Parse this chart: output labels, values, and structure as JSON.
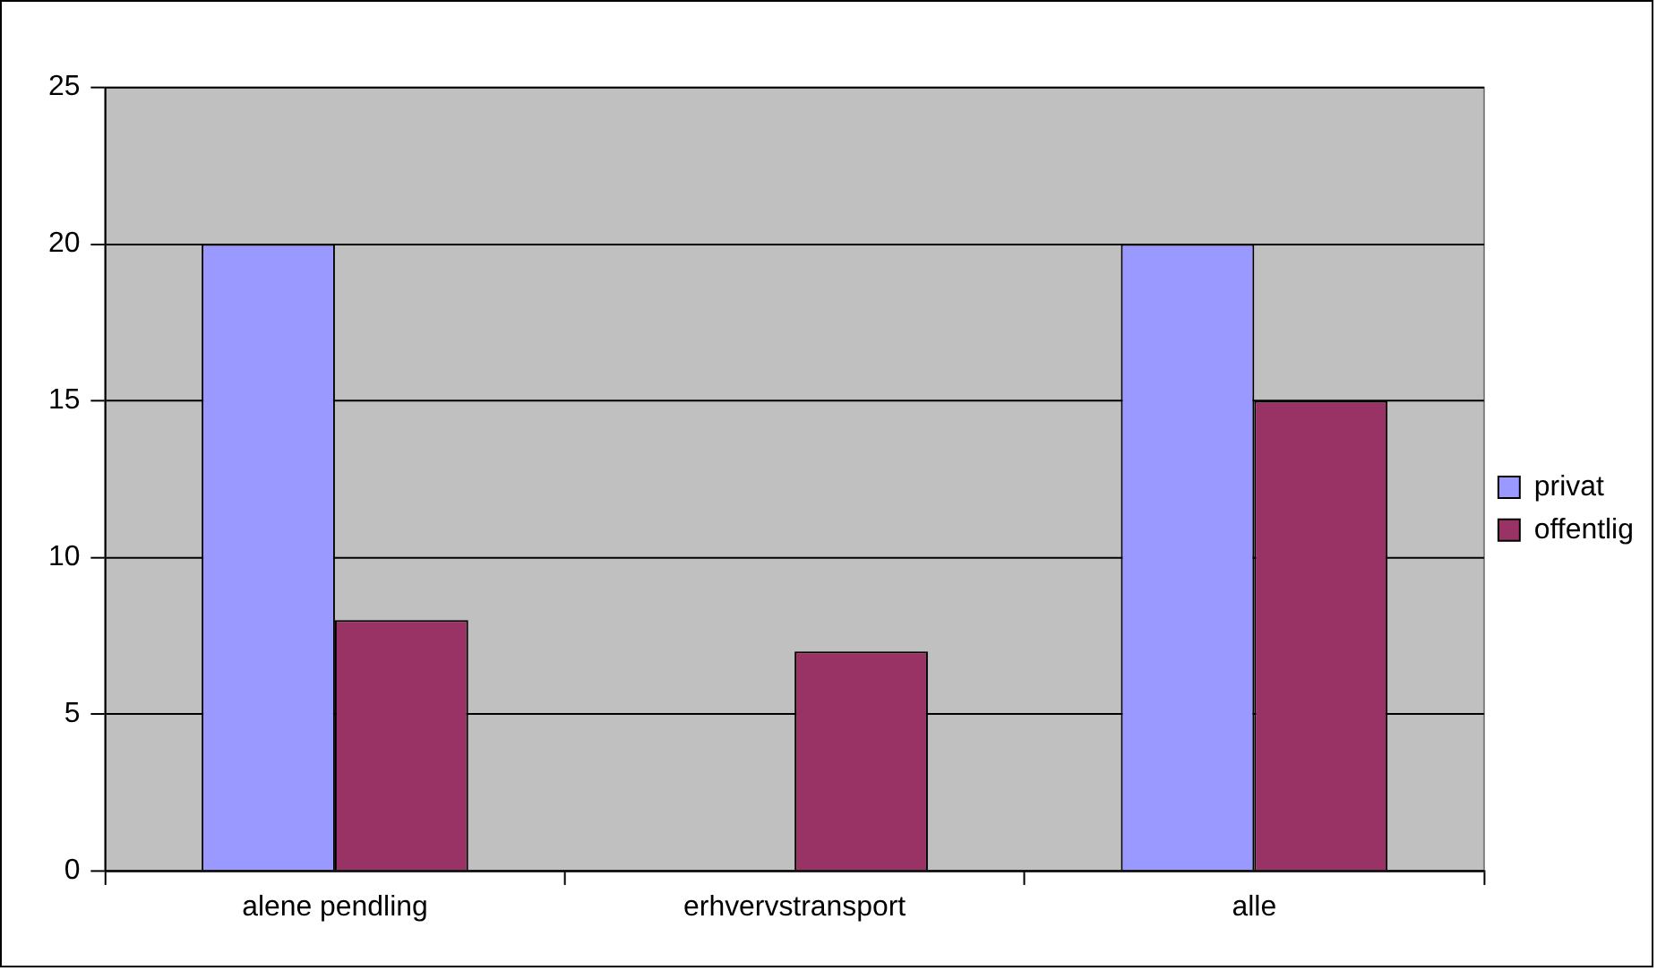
{
  "chart_data": {
    "type": "bar",
    "categories": [
      "alene pendling",
      "erhvervstransport",
      "alle"
    ],
    "series": [
      {
        "name": "privat",
        "color": "#9999ff",
        "values": [
          20,
          0,
          20
        ]
      },
      {
        "name": "offentlig",
        "color": "#993366",
        "values": [
          8,
          7,
          15
        ]
      }
    ],
    "ylim": [
      0,
      25
    ],
    "yticks": [
      0,
      5,
      10,
      15,
      20,
      25
    ],
    "grid": "y",
    "legend": "right"
  }
}
